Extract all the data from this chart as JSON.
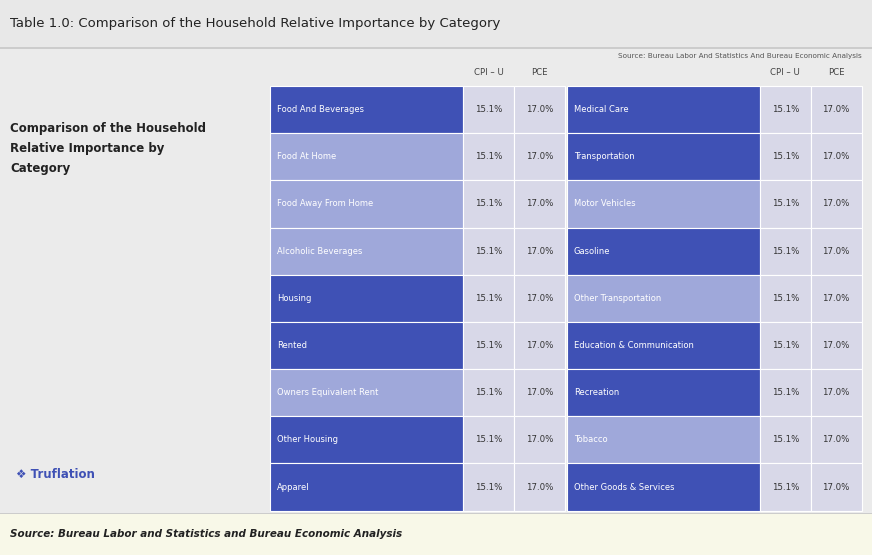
{
  "title": "Table 1.0: Comparison of the Household Relative Importance by Category",
  "source_top": "Source: Bureau Labor And Statistics And Bureau Economic Analysis",
  "source_bottom": "Source: Bureau Labor and Statistics and Bureau Economic Analysis",
  "left_title": "Comparison of the Household\nRelative Importance by\nCategory",
  "left_rows": [
    "Food And Beverages",
    "Food At Home",
    "Food Away From Home",
    "Alcoholic Beverages",
    "Housing",
    "Rented",
    "Owners Equivalent Rent",
    "Other Housing",
    "Apparel"
  ],
  "right_rows": [
    "Medical Care",
    "Transportation",
    "Motor Vehicles",
    "Gasoline",
    "Other Transportation",
    "Education & Communication",
    "Recreation",
    "Tobacco",
    "Other Goods & Services"
  ],
  "cpi_values": [
    "15.1%",
    "15.1%",
    "15.1%",
    "15.1%",
    "15.1%",
    "15.1%",
    "15.1%",
    "15.1%",
    "15.1%"
  ],
  "pce_values": [
    "17.0%",
    "17.0%",
    "17.0%",
    "17.0%",
    "17.0%",
    "17.0%",
    "17.0%",
    "17.0%",
    "17.0%"
  ],
  "dark_blue_rows_left": [
    0,
    4,
    5,
    7,
    8
  ],
  "dark_blue_rows_right": [
    0,
    1,
    3,
    5,
    6,
    8
  ],
  "dark_blue_color": "#3F51B5",
  "light_blue_color": "#9FA8DA",
  "bg_color": "#EBEBEB",
  "value_col_bg": "#D8D8E8",
  "title_color": "#222222",
  "footer_bg": "#F8F8E8",
  "truflation_color": "#3F51B5"
}
